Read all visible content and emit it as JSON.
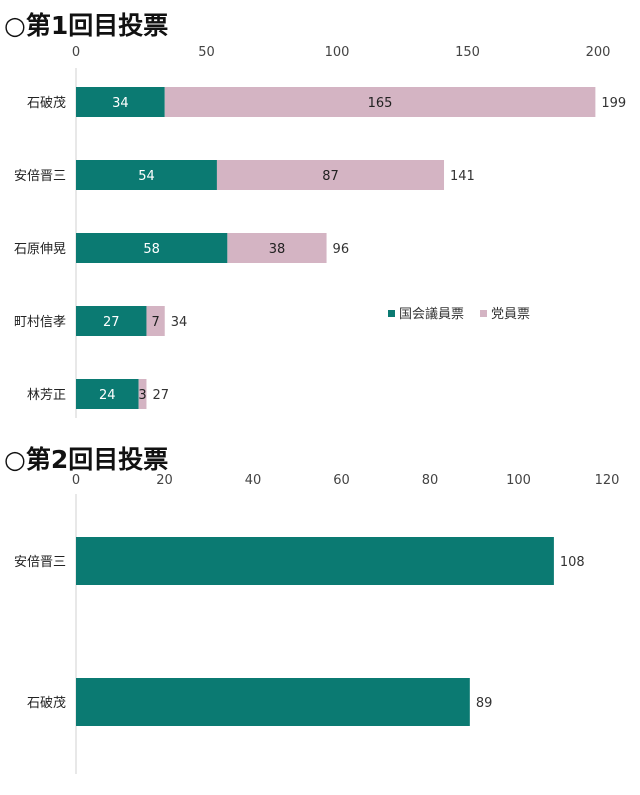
{
  "chart_data": [
    {
      "type": "bar",
      "orientation": "horizontal",
      "stacked": true,
      "title": "○第1回目投票",
      "categories": [
        "石破茂",
        "安倍晋三",
        "石原伸晃",
        "町村信孝",
        "林芳正"
      ],
      "series": [
        {
          "name": "国会議員票",
          "values": [
            34,
            54,
            58,
            27,
            24
          ],
          "color": "#0b7a72"
        },
        {
          "name": "党員票",
          "values": [
            165,
            87,
            38,
            7,
            3
          ],
          "color": "#d4b4c3"
        }
      ],
      "totals": [
        199,
        141,
        96,
        34,
        27
      ],
      "xlim": [
        0,
        200
      ],
      "xticks": [
        "0",
        "50",
        "100",
        "150",
        "200"
      ],
      "axis_position": "top",
      "legend": "inside-right"
    },
    {
      "type": "bar",
      "orientation": "horizontal",
      "title": "○第2回目投票",
      "categories": [
        "安倍晋三",
        "石破茂"
      ],
      "series": [
        {
          "values": [
            108,
            89
          ],
          "color": "#0b7a72"
        }
      ],
      "xlim": [
        0,
        120
      ],
      "xticks": [
        "0",
        "20",
        "40",
        "60",
        "80",
        "100",
        "120"
      ],
      "axis_position": "top"
    }
  ]
}
